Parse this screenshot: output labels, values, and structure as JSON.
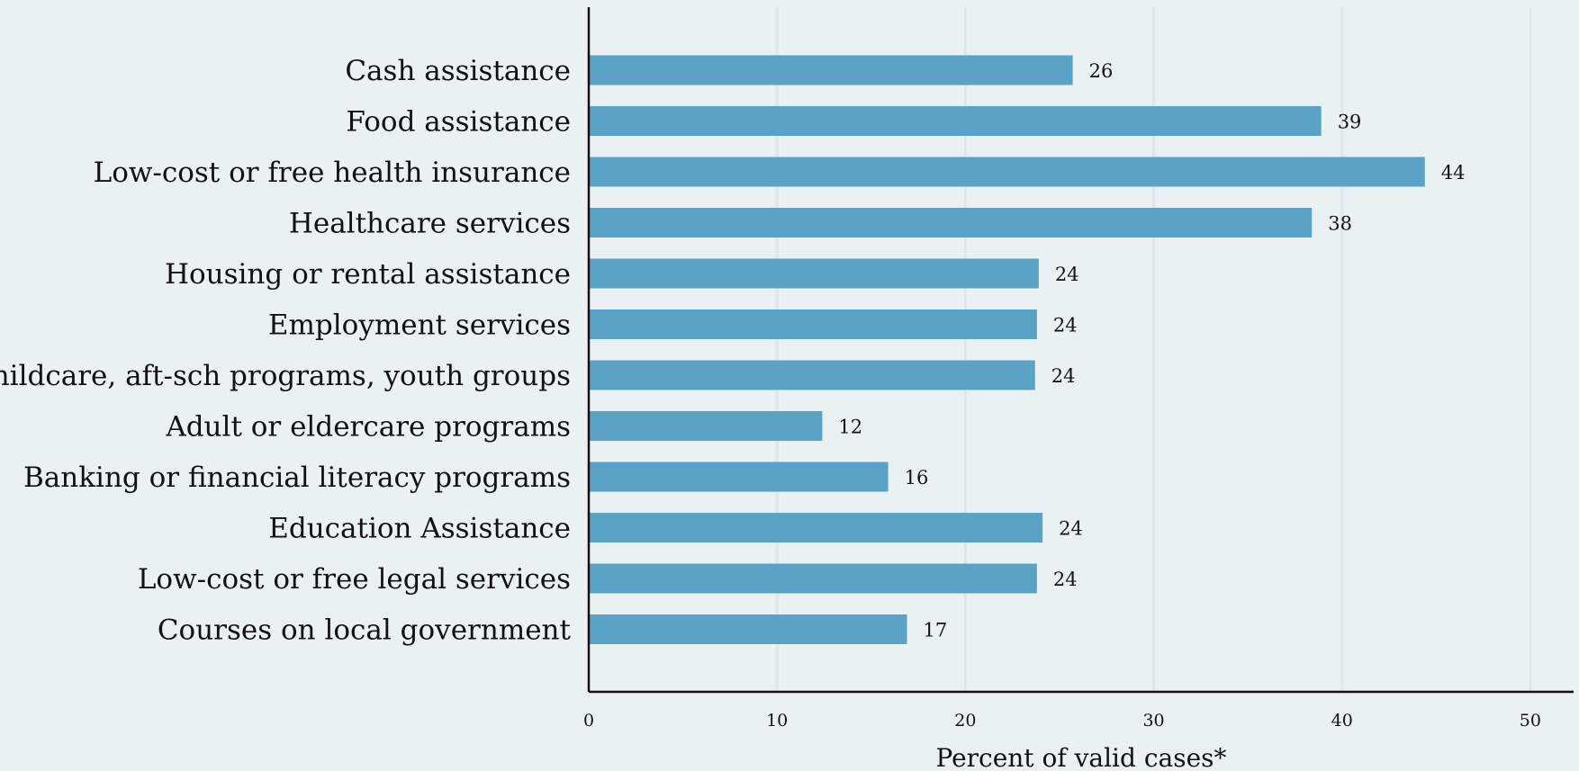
{
  "chart_data": {
    "type": "bar",
    "orientation": "horizontal",
    "categories": [
      "Cash assistance",
      "Food assistance",
      "Low-cost or free health insurance",
      "Healthcare services",
      "Housing or rental assistance",
      "Employment services",
      "Childcare, aft-sch programs, youth groups",
      "Adult or eldercare programs",
      "Banking or financial literacy programs",
      "Education Assistance",
      "Low-cost or free legal services",
      "Courses on local government"
    ],
    "values": [
      25.7,
      38.9,
      44.4,
      38.4,
      23.9,
      23.8,
      23.7,
      12.4,
      15.9,
      24.1,
      23.8,
      16.9
    ],
    "data_labels": [
      "26",
      "39",
      "44",
      "38",
      "24",
      "24",
      "24",
      "12",
      "16",
      "24",
      "24",
      "17"
    ],
    "xticks": [
      0,
      10,
      20,
      30,
      40,
      50
    ],
    "xlim": [
      0,
      52.3
    ],
    "xlabel": "Percent of valid cases*",
    "ylabel": "",
    "title": "",
    "grid": "vertical",
    "legend": "none",
    "colors": {
      "bar": "#5aa2c6",
      "background": "#eaf1f3",
      "grid": "#dde8eb"
    }
  }
}
